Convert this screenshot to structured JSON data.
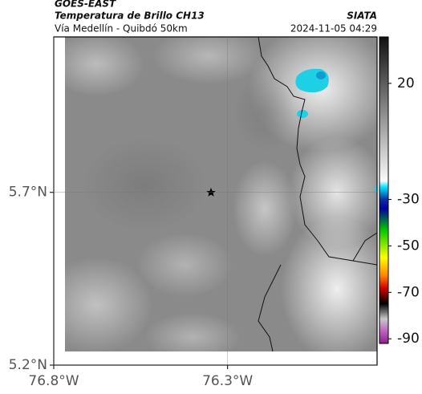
{
  "header": {
    "title": "GOES-EAST",
    "subtitle": "Temperatura de Brillo CH13",
    "org": "SIATA",
    "route": "Vía Medellín - Quibdó 50km",
    "timestamp": "2024-11-05 04:29"
  },
  "map": {
    "latlim": [
      5.2,
      6.15
    ],
    "lonlim": [
      -76.8,
      -75.87
    ],
    "lat_ticks": [
      {
        "value": 5.7,
        "label": "5.7°N"
      },
      {
        "value": 5.2,
        "label": "5.2°N"
      }
    ],
    "lon_ticks": [
      {
        "value": -76.8,
        "label": "76.8°W"
      },
      {
        "value": -76.3,
        "label": "76.3°W"
      }
    ]
  },
  "colorbar": {
    "clim": [
      -92,
      40
    ],
    "ticks": [
      20,
      -30,
      -50,
      -70,
      -90
    ]
  }
}
